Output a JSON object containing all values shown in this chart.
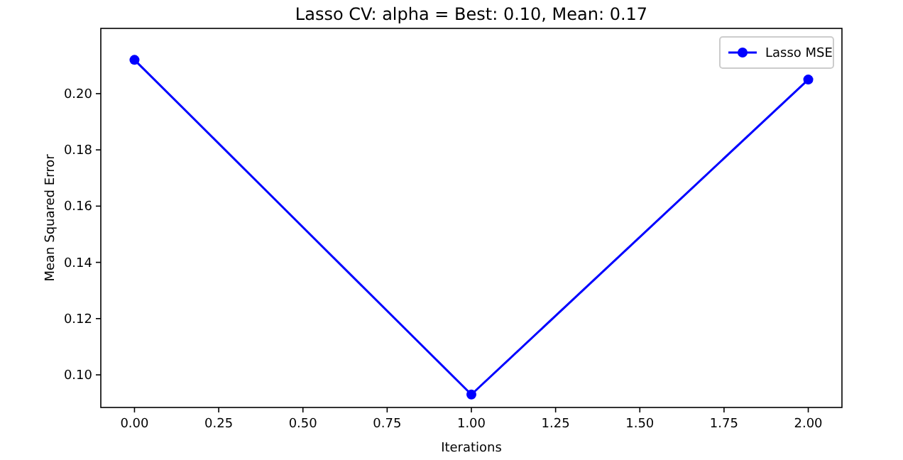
{
  "chart_data": {
    "type": "line",
    "title": "Lasso CV:  alpha =  Best: 0.10, Mean: 0.17",
    "xlabel": "Iterations",
    "ylabel": "Mean Squared Error",
    "x": [
      0,
      1,
      2
    ],
    "series": [
      {
        "name": "Lasso MSE",
        "color": "#0000ff",
        "values": [
          0.212,
          0.093,
          0.205
        ]
      }
    ],
    "xlim": [
      -0.1,
      2.1
    ],
    "xticks": [
      {
        "value": 0,
        "label": "0.00"
      },
      {
        "value": 0.25,
        "label": "0.25"
      },
      {
        "value": 0.5,
        "label": "0.50"
      },
      {
        "value": 0.75,
        "label": "0.75"
      },
      {
        "value": 1,
        "label": "1.00"
      },
      {
        "value": 1.25,
        "label": "1.25"
      },
      {
        "value": 1.5,
        "label": "1.50"
      },
      {
        "value": 1.75,
        "label": "1.75"
      },
      {
        "value": 2,
        "label": "2.00"
      }
    ],
    "ylim": [
      0.0884,
      0.2232
    ],
    "yticks": [
      {
        "value": 0.1,
        "label": "0.10"
      },
      {
        "value": 0.12,
        "label": "0.12"
      },
      {
        "value": 0.14,
        "label": "0.14"
      },
      {
        "value": 0.16,
        "label": "0.16"
      },
      {
        "value": 0.18,
        "label": "0.18"
      },
      {
        "value": 0.2,
        "label": "0.20"
      }
    ],
    "marker": "circle",
    "legend": "top right"
  }
}
